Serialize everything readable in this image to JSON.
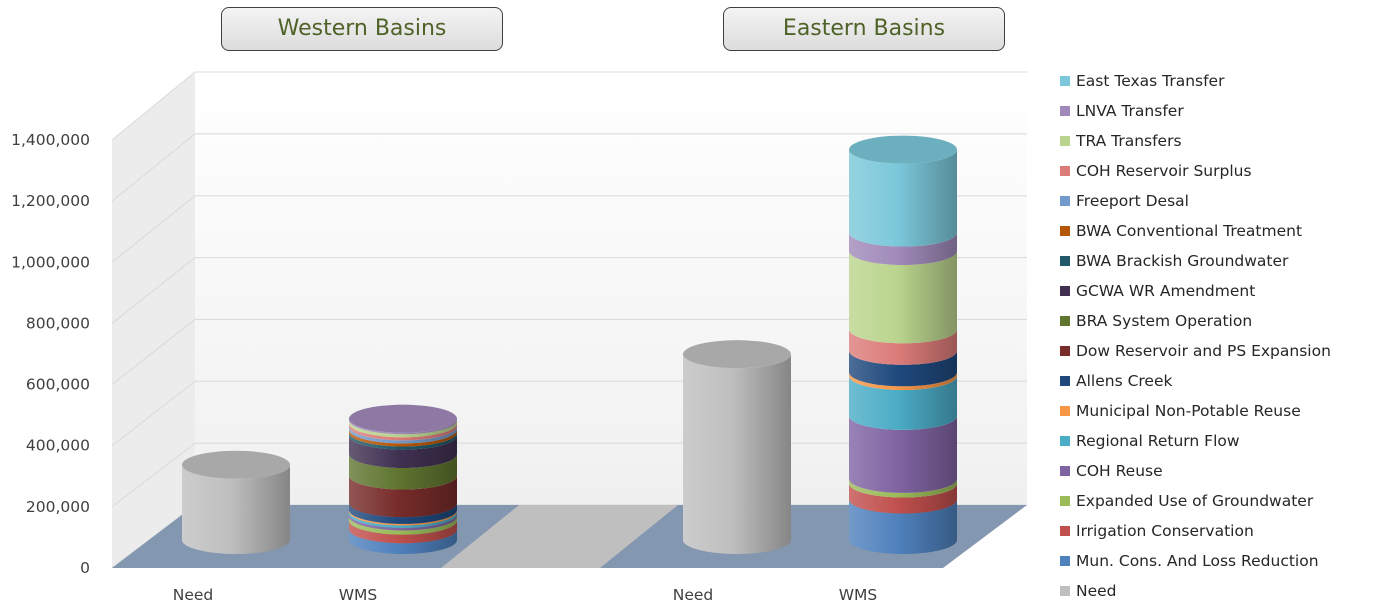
{
  "group_labels": {
    "western": "Western Basins",
    "eastern": "Eastern Basins"
  },
  "chart_data": {
    "type": "bar",
    "style": "3d-cylinder-stacked",
    "y_ticks": [
      "0",
      "200,000",
      "400,000",
      "600,000",
      "800,000",
      "1,000,000",
      "1,200,000",
      "1,400,000"
    ],
    "ylim": [
      0,
      1400000
    ],
    "x_ticks": [
      "Need",
      "WMS",
      "Need",
      "WMS"
    ],
    "groups": [
      "Western Basins",
      "Eastern Basins"
    ],
    "legend_position": "right",
    "series": [
      {
        "name": "Need",
        "color": "#bfbfbf",
        "values": [
          245000,
          0,
          605000,
          0
        ]
      },
      {
        "name": "Mun. Cons. And Loss Reduction",
        "color": "#4f81bd",
        "values": [
          0,
          35000,
          0,
          132000
        ]
      },
      {
        "name": "Irrigation Conservation",
        "color": "#c0504d",
        "values": [
          0,
          28000,
          0,
          52000
        ]
      },
      {
        "name": "Expanded Use of Groundwater",
        "color": "#9bbb59",
        "values": [
          0,
          14000,
          0,
          15000
        ]
      },
      {
        "name": "COH Reuse",
        "color": "#8064a2",
        "values": [
          0,
          8000,
          0,
          205000
        ]
      },
      {
        "name": "Regional Return Flow",
        "color": "#4bacc6",
        "values": [
          0,
          8000,
          0,
          130000
        ]
      },
      {
        "name": "Municipal Non-Potable Reuse",
        "color": "#f79646",
        "values": [
          0,
          5000,
          0,
          12000
        ]
      },
      {
        "name": "Allens Creek",
        "color": "#1f497d",
        "values": [
          0,
          22000,
          0,
          70000
        ]
      },
      {
        "name": "Dow Reservoir and PS Expansion",
        "color": "#772c2a",
        "values": [
          0,
          90000,
          0,
          0
        ]
      },
      {
        "name": "BRA System Operation",
        "color": "#5f7530",
        "values": [
          0,
          70000,
          0,
          0
        ]
      },
      {
        "name": "GCWA WR Amendment",
        "color": "#403151",
        "values": [
          0,
          60000,
          0,
          0
        ]
      },
      {
        "name": "BWA Brackish Groundwater",
        "color": "#215968",
        "values": [
          0,
          10000,
          0,
          0
        ]
      },
      {
        "name": "BWA Conventional Treatment",
        "color": "#b65708",
        "values": [
          0,
          10000,
          0,
          0
        ]
      },
      {
        "name": "Freeport Desal",
        "color": "#729aca",
        "values": [
          0,
          10000,
          0,
          0
        ]
      },
      {
        "name": "COH Reservoir Surplus",
        "color": "#dc7c79",
        "values": [
          0,
          10000,
          0,
          70000
        ]
      },
      {
        "name": "TRA Transfers",
        "color": "#bad48d",
        "values": [
          0,
          10000,
          0,
          255000
        ]
      },
      {
        "name": "LNVA Transfer",
        "color": "#a08ab9",
        "values": [
          0,
          5000,
          0,
          60000
        ]
      },
      {
        "name": "East Texas Transfer",
        "color": "#7bc8da",
        "values": [
          0,
          0,
          0,
          270000
        ]
      }
    ]
  }
}
